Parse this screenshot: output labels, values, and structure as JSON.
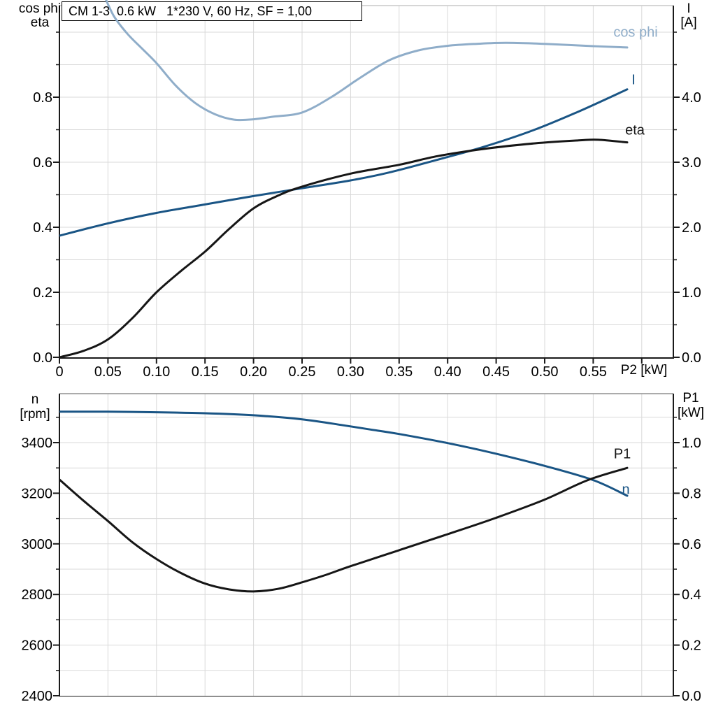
{
  "labels": {
    "title": "CM 1-3  0.6 kW   1*230 V, 60 Hz, SF = 1,00",
    "cos_phi_axis": "cos phi",
    "eta_axis": "eta",
    "current_axis": "I",
    "current_unit": "[A]",
    "speed_axis": "n",
    "speed_unit": "[rpm]",
    "p1_axis": "P1",
    "p1_unit": "[kW]",
    "x_axis": "P2 [kW]",
    "curve_cos_phi": "cos phi",
    "curve_current": "I",
    "curve_eta": "eta",
    "curve_p1": "P1",
    "curve_n": "n"
  },
  "colors": {
    "dark_blue": "#1a5585",
    "light_blue": "#8fadc9",
    "black": "#161616",
    "grid": "#d9d9d9",
    "border_gray": "#8f8f8f",
    "top_border_gray": "#c9c9c9",
    "axis": "#1a1a1a",
    "box_fill": "#ffffff"
  },
  "chart_data": [
    {
      "type": "line",
      "title": "CM 1-3  0.6 kW   1*230 V, 60 Hz, SF = 1,00",
      "xlabel": "P2 [kW]",
      "xlim": [
        0,
        0.6326
      ],
      "x_tick_values": [
        0,
        0.05,
        0.1,
        0.15,
        0.2,
        0.25,
        0.3,
        0.35,
        0.4,
        0.45,
        0.5,
        0.55,
        0.6
      ],
      "x_tick_labels": [
        "0",
        "0.05",
        "0.10",
        "0.15",
        "0.20",
        "0.25",
        "0.30",
        "0.35",
        "0.40",
        "0.45",
        "0.50",
        "0.55"
      ],
      "left_axis": {
        "label": "cos phi / eta",
        "lim": [
          0,
          1.082
        ],
        "major_values": [
          0,
          0.2,
          0.4,
          0.6,
          0.8
        ],
        "major_labels": [
          "0.0",
          "0.2",
          "0.4",
          "0.6",
          "0.8"
        ],
        "minor_values": [
          0.1,
          0.3,
          0.5,
          0.7,
          0.9,
          1.0
        ],
        "gridline_values": [
          0.1,
          0.2,
          0.3,
          0.4,
          0.5,
          0.6,
          0.7,
          0.8,
          0.9,
          1.0
        ]
      },
      "right_axis": {
        "label": "I [A]",
        "lim": [
          0,
          5.41
        ],
        "major_values": [
          0,
          1,
          2,
          3,
          4
        ],
        "major_labels": [
          "0.0",
          "1.0",
          "2.0",
          "3.0",
          "4.0"
        ],
        "minor_values": [
          0.5,
          1.5,
          2.5,
          3.5,
          4.5,
          5.0
        ]
      },
      "grid": true,
      "legend_position": "inline-labels",
      "series": [
        {
          "name": "cos phi",
          "axis": "left",
          "color_key": "light_blue",
          "points": [
            [
              0.045,
              1.12
            ],
            [
              0.056,
              1.05
            ],
            [
              0.07,
              0.995
            ],
            [
              0.085,
              0.95
            ],
            [
              0.1,
              0.905
            ],
            [
              0.12,
              0.835
            ],
            [
              0.14,
              0.782
            ],
            [
              0.16,
              0.748
            ],
            [
              0.18,
              0.731
            ],
            [
              0.2,
              0.732
            ],
            [
              0.22,
              0.74
            ],
            [
              0.25,
              0.753
            ],
            [
              0.28,
              0.8
            ],
            [
              0.31,
              0.86
            ],
            [
              0.34,
              0.914
            ],
            [
              0.37,
              0.944
            ],
            [
              0.4,
              0.958
            ],
            [
              0.43,
              0.964
            ],
            [
              0.46,
              0.967
            ],
            [
              0.5,
              0.964
            ],
            [
              0.55,
              0.957
            ],
            [
              0.585,
              0.953
            ]
          ]
        },
        {
          "name": "I",
          "axis": "right",
          "color_key": "dark_blue",
          "points": [
            [
              0,
              1.87
            ],
            [
              0.05,
              2.06
            ],
            [
              0.1,
              2.22
            ],
            [
              0.15,
              2.35
            ],
            [
              0.2,
              2.48
            ],
            [
              0.25,
              2.6
            ],
            [
              0.3,
              2.72
            ],
            [
              0.342,
              2.85
            ],
            [
              0.39,
              3.04
            ],
            [
              0.438,
              3.24
            ],
            [
              0.488,
              3.49
            ],
            [
              0.535,
              3.78
            ],
            [
              0.585,
              4.12
            ]
          ]
        },
        {
          "name": "eta",
          "axis": "left",
          "color_key": "black",
          "points": [
            [
              0,
              0
            ],
            [
              0.025,
              0.02
            ],
            [
              0.05,
              0.055
            ],
            [
              0.075,
              0.12
            ],
            [
              0.1,
              0.2
            ],
            [
              0.125,
              0.265
            ],
            [
              0.15,
              0.325
            ],
            [
              0.175,
              0.395
            ],
            [
              0.2,
              0.458
            ],
            [
              0.225,
              0.497
            ],
            [
              0.25,
              0.525
            ],
            [
              0.3,
              0.565
            ],
            [
              0.35,
              0.592
            ],
            [
              0.39,
              0.619
            ],
            [
              0.44,
              0.642
            ],
            [
              0.49,
              0.658
            ],
            [
              0.535,
              0.667
            ],
            [
              0.555,
              0.669
            ],
            [
              0.585,
              0.661
            ]
          ]
        }
      ]
    },
    {
      "type": "line",
      "title": "",
      "xlabel": "",
      "xlim": [
        0,
        0.6326
      ],
      "x_tick_values": [
        0,
        0.05,
        0.1,
        0.15,
        0.2,
        0.25,
        0.3,
        0.35,
        0.4,
        0.45,
        0.5,
        0.55,
        0.6
      ],
      "x_tick_labels": [],
      "left_axis": {
        "label": "n [rpm]",
        "lim": [
          2397,
          3593
        ],
        "major_values": [
          2400,
          2600,
          2800,
          3000,
          3200,
          3400
        ],
        "major_labels": [
          "2400",
          "2600",
          "2800",
          "3000",
          "3200",
          "3400"
        ],
        "minor_values": [
          2500,
          2700,
          2900,
          3100,
          3300,
          3500
        ]
      },
      "right_axis": {
        "label": "P1 [kW]",
        "lim": [
          0,
          1.193
        ],
        "major_values": [
          0,
          0.2,
          0.4,
          0.6,
          0.8,
          1.0
        ],
        "major_labels": [
          "0.0",
          "0.2",
          "0.4",
          "0.6",
          "0.8",
          "1.0"
        ],
        "minor_values": [
          0.1,
          0.3,
          0.5,
          0.7,
          0.9,
          1.1
        ],
        "gridline_values": [
          0.1,
          0.2,
          0.3,
          0.4,
          0.5,
          0.6,
          0.7,
          0.8,
          0.9,
          1.0,
          1.1
        ]
      },
      "grid": true,
      "legend_position": "inline-labels",
      "series": [
        {
          "name": "n",
          "axis": "left",
          "color_key": "dark_blue",
          "points": [
            [
              0,
              3522
            ],
            [
              0.05,
              3522
            ],
            [
              0.1,
              3520
            ],
            [
              0.15,
              3516
            ],
            [
              0.2,
              3508
            ],
            [
              0.25,
              3492
            ],
            [
              0.29,
              3470
            ],
            [
              0.32,
              3452
            ],
            [
              0.35,
              3434
            ],
            [
              0.4,
              3398
            ],
            [
              0.45,
              3356
            ],
            [
              0.5,
              3308
            ],
            [
              0.55,
              3252
            ],
            [
              0.585,
              3190
            ]
          ]
        },
        {
          "name": "P1",
          "axis": "right",
          "color_key": "black",
          "points": [
            [
              0,
              0.854
            ],
            [
              0.025,
              0.77
            ],
            [
              0.05,
              0.69
            ],
            [
              0.075,
              0.607
            ],
            [
              0.1,
              0.54
            ],
            [
              0.125,
              0.485
            ],
            [
              0.15,
              0.443
            ],
            [
              0.175,
              0.42
            ],
            [
              0.2,
              0.412
            ],
            [
              0.225,
              0.422
            ],
            [
              0.25,
              0.448
            ],
            [
              0.275,
              0.478
            ],
            [
              0.3,
              0.512
            ],
            [
              0.35,
              0.575
            ],
            [
              0.4,
              0.638
            ],
            [
              0.45,
              0.703
            ],
            [
              0.5,
              0.775
            ],
            [
              0.544,
              0.851
            ],
            [
              0.585,
              0.9
            ]
          ]
        }
      ]
    }
  ]
}
